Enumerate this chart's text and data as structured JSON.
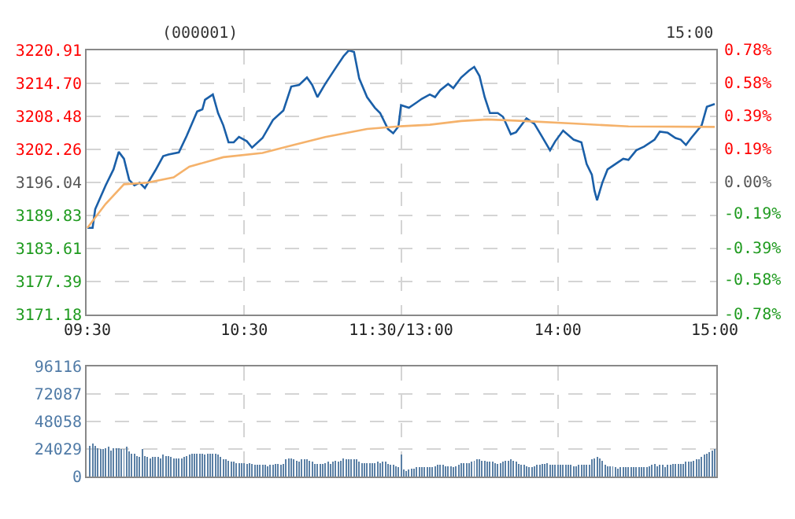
{
  "chart_data": [
    {
      "type": "line",
      "annotations": [
        "(000001)",
        "15:00"
      ],
      "grid": true,
      "categories": [
        "09:30",
        null,
        null,
        null,
        null,
        null,
        null,
        null,
        null,
        null,
        null,
        null,
        null,
        null,
        null,
        null,
        null,
        null,
        null,
        null,
        null,
        null,
        null,
        null,
        null,
        null,
        null,
        null,
        null,
        null,
        null,
        null,
        null,
        null,
        null,
        null,
        null,
        null,
        null,
        null,
        null,
        null,
        null,
        null,
        null,
        null,
        null,
        null,
        null,
        null,
        null,
        null,
        null,
        null,
        null,
        null,
        null,
        null,
        null,
        null,
        "10:30",
        null,
        null,
        null,
        null,
        null,
        null,
        null,
        null,
        null,
        null,
        null,
        null,
        null,
        null,
        null,
        null,
        null,
        null,
        null,
        null,
        null,
        null,
        null,
        null,
        null,
        null,
        null,
        null,
        null,
        null,
        null,
        null,
        null,
        null,
        null,
        null,
        null,
        null,
        null,
        null,
        null,
        null,
        null,
        null,
        null,
        null,
        null,
        null,
        null,
        null,
        null,
        null,
        null,
        null,
        null,
        null,
        null,
        null,
        null,
        "11:30/13:00",
        null,
        null,
        null,
        null,
        null,
        null,
        null,
        null,
        null,
        null,
        null,
        null,
        null,
        null,
        null,
        null,
        null,
        null,
        null,
        null,
        null,
        null,
        null,
        null,
        null,
        null,
        null,
        null,
        null,
        null,
        null,
        null,
        null,
        null,
        null,
        null,
        null,
        null,
        null,
        null,
        null,
        null,
        null,
        null,
        null,
        null,
        null,
        null,
        null,
        null,
        null,
        null,
        null,
        null,
        null,
        null,
        null,
        null,
        null,
        "14:00",
        null,
        null,
        null,
        null,
        null,
        null,
        null,
        null,
        null,
        null,
        null,
        null,
        null,
        null,
        null,
        null,
        null,
        null,
        null,
        null,
        null,
        null,
        null,
        null,
        null,
        null,
        null,
        null,
        null,
        null,
        null,
        null,
        null,
        null,
        null,
        null,
        null,
        null,
        null,
        null,
        null,
        null,
        null,
        null,
        null,
        null,
        null,
        null,
        null,
        null,
        null,
        null,
        null,
        null,
        null,
        null,
        null,
        null,
        null,
        "15:00"
      ],
      "ylim": [
        3171.18,
        3220.91
      ],
      "yticks": [
        3171.18,
        3177.39,
        3183.61,
        3189.83,
        3196.04,
        3202.26,
        3208.48,
        {
          "value": 3214.7,
          "label": "3214.70"
        },
        3220.91
      ],
      "y2lim": [
        -0.78,
        0.78
      ],
      "y2ticks": [
        {
          "value": -0.78,
          "label": "-0.78%"
        },
        {
          "value": -0.58,
          "label": "-0.58%"
        },
        {
          "value": -0.39,
          "label": "-0.39%"
        },
        {
          "value": -0.19,
          "label": "-0.19%"
        },
        {
          "value": 0,
          "label": "0.00%"
        },
        {
          "value": 0.19,
          "label": "0.19%"
        },
        {
          "value": 0.39,
          "label": "0.39%"
        },
        {
          "value": 0.58,
          "label": "0.58%"
        },
        {
          "value": 0.78,
          "label": "0.78%"
        }
      ],
      "series": [
        {
          "color": "#1a5fa8",
          "values": [
            3187.5,
            null,
            3187.5,
            3191.0,
            null,
            null,
            null,
            3195.5,
            null,
            null,
            3198.5,
            null,
            3201.8,
            null,
            3200.5,
            null,
            3196.5,
            null,
            3195.5,
            null,
            3196.0,
            null,
            3195.0,
            null,
            null,
            null,
            3198.3,
            null,
            null,
            3201.0,
            null,
            3201.3,
            null,
            null,
            null,
            3201.7,
            null,
            null,
            3204.8,
            null,
            null,
            null,
            3209.4,
            null,
            3209.8,
            3211.6,
            null,
            null,
            3212.6,
            null,
            3209.1,
            null,
            3206.8,
            null,
            3203.6,
            null,
            3203.6,
            null,
            3204.6,
            null,
            null,
            3203.8,
            null,
            3202.6,
            null,
            null,
            null,
            3204.4,
            null,
            null,
            null,
            3207.8,
            null,
            null,
            null,
            3209.6,
            null,
            null,
            3214.1,
            null,
            null,
            3214.4,
            null,
            null,
            3215.8,
            null,
            3214.4,
            null,
            3212.1,
            null,
            null,
            3214.6,
            null,
            null,
            null,
            3217.6,
            null,
            null,
            3219.8,
            null,
            3220.9,
            null,
            3220.6,
            null,
            3215.6,
            null,
            null,
            3212.1,
            null,
            null,
            3210.1,
            null,
            3209.1,
            null,
            null,
            3206.1,
            null,
            3205.3,
            null,
            3206.6,
            3210.6,
            null,
            null,
            3210.1,
            null,
            null,
            3211.1,
            null,
            3211.8,
            null,
            null,
            3212.6,
            null,
            3212.1,
            null,
            3213.4,
            null,
            null,
            3214.6,
            null,
            3213.8,
            null,
            null,
            3215.8,
            null,
            null,
            3217.1,
            null,
            3217.8,
            null,
            3216.1,
            null,
            3212.1,
            null,
            3209.1,
            null,
            null,
            3209.1,
            null,
            3208.4,
            null,
            null,
            3205.1,
            null,
            3205.5,
            null,
            null,
            null,
            3208.1,
            null,
            null,
            3207.1,
            null,
            null,
            3204.6,
            null,
            null,
            3202.1,
            null,
            3203.8,
            null,
            null,
            3205.8,
            null,
            null,
            null,
            3204.1,
            null,
            null,
            3203.6,
            null,
            3199.5,
            null,
            3197.5,
            3194.5,
            3192.7,
            null,
            3196.0,
            null,
            3198.5,
            null,
            null,
            3199.5,
            null,
            null,
            3200.5,
            null,
            3200.3,
            null,
            null,
            3202.1,
            null,
            null,
            3202.8,
            null,
            null,
            null,
            3204.1,
            null,
            3205.6,
            null,
            null,
            3205.4,
            null,
            null,
            3204.4,
            null,
            3204.1,
            null,
            3203.1,
            null,
            3204.4,
            null,
            null,
            null,
            3206.8,
            null,
            3210.3,
            null,
            null,
            3210.8
          ]
        },
        {
          "color": "#f5b26b",
          "values": [
            3187.5,
            null,
            null,
            null,
            null,
            null,
            null,
            3192.0,
            null,
            null,
            null,
            null,
            null,
            null,
            3195.7,
            null,
            null,
            null,
            null,
            null,
            null,
            null,
            null,
            3196.0,
            null,
            null,
            null,
            null,
            null,
            null,
            null,
            null,
            null,
            3197.0,
            null,
            null,
            null,
            null,
            null,
            3199.0,
            null,
            null,
            null,
            null,
            null,
            null,
            null,
            null,
            null,
            null,
            null,
            null,
            3200.8,
            null,
            null,
            null,
            null,
            null,
            null,
            null,
            null,
            null,
            null,
            null,
            null,
            null,
            null,
            3201.6,
            null,
            null,
            null,
            null,
            null,
            null,
            null,
            null,
            null,
            null,
            null,
            3203.1,
            null,
            null,
            null,
            null,
            null,
            null,
            null,
            null,
            null,
            null,
            null,
            3204.6,
            null,
            null,
            null,
            null,
            null,
            null,
            null,
            null,
            null,
            null,
            null,
            null,
            null,
            null,
            null,
            3206.1,
            null,
            null,
            null,
            null,
            null,
            null,
            null,
            null,
            null,
            null,
            null,
            3206.6,
            null,
            null,
            null,
            null,
            null,
            null,
            null,
            null,
            null,
            null,
            null,
            3206.9,
            null,
            null,
            null,
            null,
            null,
            null,
            null,
            null,
            null,
            null,
            null,
            3207.6,
            null,
            null,
            null,
            null,
            null,
            null,
            null,
            null,
            null,
            3207.9,
            null,
            null,
            null,
            null,
            null,
            null,
            null,
            null,
            null,
            null,
            null,
            null,
            null,
            3207.6,
            null,
            null,
            null,
            null,
            null,
            null,
            null,
            null,
            null,
            null,
            null,
            null,
            null,
            null,
            null,
            null,
            null,
            null,
            null,
            3207.1,
            null,
            null,
            null,
            null,
            null,
            null,
            null,
            null,
            null,
            null,
            null,
            null,
            null,
            null,
            null,
            null,
            null,
            null,
            null,
            3206.6,
            null,
            null,
            null,
            null,
            null,
            null,
            null,
            null,
            null,
            null,
            null,
            null,
            null,
            null,
            null,
            null,
            null,
            null,
            null,
            null,
            null,
            null,
            null,
            null,
            null,
            null,
            null,
            null,
            null,
            null,
            null,
            null,
            3206.5
          ]
        }
      ]
    },
    {
      "type": "bar",
      "grid": true,
      "tick_labels": "y",
      "color": "#5b80a5",
      "categories": [
        null,
        null,
        null,
        null,
        null,
        null,
        null,
        null,
        null,
        null,
        null,
        null,
        null,
        null,
        null,
        null,
        null,
        null,
        null,
        null,
        null,
        null,
        null,
        null,
        null,
        null,
        null,
        null,
        null,
        null,
        null,
        null,
        null,
        null,
        null,
        null,
        null,
        null,
        null,
        null,
        null,
        null,
        null,
        null,
        null,
        null,
        null,
        null,
        null,
        null,
        null,
        null,
        null,
        null,
        null,
        null,
        null,
        null,
        null,
        null,
        null,
        null,
        null,
        null,
        null,
        null,
        null,
        null,
        null,
        null,
        null,
        null,
        null,
        null,
        null,
        null,
        null,
        null,
        null,
        null,
        null,
        null,
        null,
        null,
        null,
        null,
        null,
        null,
        null,
        null,
        null,
        null,
        null,
        null,
        null,
        null,
        null,
        null,
        null,
        null,
        null,
        null,
        null,
        null,
        null,
        null,
        null,
        null,
        null,
        null,
        null,
        null,
        null,
        null,
        null,
        null,
        null,
        null,
        null,
        null,
        null,
        null,
        null,
        null,
        null,
        null,
        null,
        null,
        null,
        null,
        null,
        null,
        null,
        null,
        null,
        null,
        null,
        null,
        null,
        null,
        null,
        null,
        null,
        null,
        null,
        null,
        null,
        null,
        null,
        null,
        null,
        null,
        null,
        null,
        null,
        null,
        null,
        null,
        null,
        null,
        null,
        null,
        null,
        null,
        null,
        null,
        null,
        null,
        null,
        null,
        null,
        null,
        null,
        null,
        null,
        null,
        null,
        null,
        null,
        null,
        null,
        null,
        null,
        null,
        null,
        null,
        null,
        null,
        null,
        null,
        null,
        null,
        null,
        null,
        null,
        null,
        null,
        null,
        null,
        null,
        null,
        null,
        null,
        null,
        null,
        null,
        null,
        null,
        null,
        null,
        null,
        null,
        null,
        null,
        null,
        null,
        null,
        null,
        null,
        null,
        null,
        null,
        null,
        null,
        null,
        null,
        null,
        null,
        null,
        null,
        null,
        null,
        null,
        null,
        null,
        null,
        null,
        null,
        null,
        null,
        null
      ],
      "ylim": [
        0,
        96116
      ],
      "yticks": [
        0,
        24029,
        48058,
        72087,
        96116
      ],
      "values": [
        null,
        27000,
        29000,
        27000,
        25000,
        24000,
        24000,
        25000,
        26000,
        23000,
        25000,
        25000,
        25000,
        24000,
        24000,
        26000,
        22000,
        20000,
        20000,
        18000,
        17000,
        24000,
        18000,
        17000,
        16000,
        17000,
        17000,
        17000,
        16000,
        19000,
        18000,
        18000,
        17000,
        16000,
        16000,
        16000,
        16000,
        17000,
        18000,
        19000,
        20000,
        20000,
        20000,
        20000,
        20000,
        19000,
        20000,
        20000,
        20000,
        20000,
        19000,
        17000,
        15000,
        15000,
        14000,
        13000,
        13000,
        12000,
        12000,
        12000,
        12000,
        11000,
        12000,
        11000,
        10000,
        10000,
        10000,
        10000,
        10000,
        9000,
        10000,
        10000,
        11000,
        11000,
        10000,
        11000,
        15000,
        16000,
        16000,
        15000,
        14000,
        13000,
        15000,
        15000,
        15000,
        14000,
        13000,
        11000,
        11000,
        11000,
        11000,
        12000,
        13000,
        11000,
        13000,
        14000,
        13000,
        14000,
        16000,
        15000,
        15000,
        15000,
        15000,
        15000,
        13000,
        12000,
        12000,
        12000,
        12000,
        12000,
        12000,
        13000,
        12000,
        13000,
        13000,
        11000,
        10000,
        10000,
        9000,
        8000,
        19000,
        6000,
        5000,
        6000,
        7000,
        7000,
        8000,
        8000,
        8000,
        8000,
        8000,
        8000,
        8000,
        9000,
        10000,
        10000,
        10000,
        9000,
        9000,
        9000,
        8000,
        9000,
        10000,
        12000,
        12000,
        12000,
        12000,
        13000,
        14000,
        15000,
        15000,
        14000,
        14000,
        13000,
        13000,
        13000,
        12000,
        11000,
        12000,
        13000,
        14000,
        14000,
        15000,
        14000,
        13000,
        11000,
        10000,
        10000,
        9000,
        8000,
        8000,
        9000,
        10000,
        10000,
        11000,
        11000,
        12000,
        10000,
        10000,
        10000,
        10000,
        10000,
        10000,
        10000,
        10000,
        10000,
        9000,
        9000,
        10000,
        10000,
        10000,
        10000,
        10000,
        15000,
        16000,
        17000,
        16000,
        14000,
        10000,
        9000,
        9000,
        9000,
        8000,
        7000,
        8000,
        8000,
        8000,
        8000,
        8000,
        8000,
        8000,
        8000,
        8000,
        8000,
        8000,
        9000,
        10000,
        11000,
        9000,
        10000,
        10000,
        8000,
        10000,
        10000,
        11000,
        11000,
        11000,
        11000,
        11000,
        13000,
        13000,
        13000,
        14000,
        15000,
        15000,
        17000,
        19000,
        20000,
        21000,
        23000,
        24000
      ]
    }
  ]
}
